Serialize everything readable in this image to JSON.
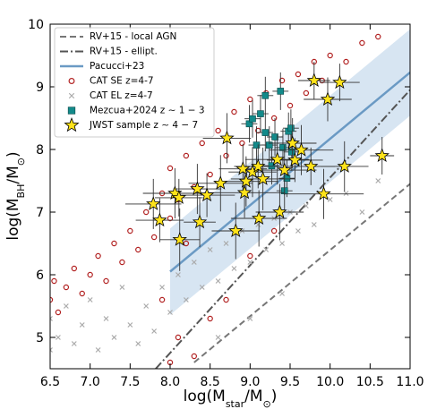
{
  "chart_data": {
    "type": "scatter",
    "xlabel": [
      "log(M",
      "star",
      "/M",
      "⊙",
      ")"
    ],
    "ylabel": [
      "log(M",
      "BH",
      "/M",
      "⊙",
      ")"
    ],
    "xlim": [
      6.5,
      11.0
    ],
    "ylim": [
      4.5,
      10
    ],
    "xticks": [
      6.5,
      {
        "value": 7,
        "label": "7.0"
      },
      7.5,
      {
        "value": 8,
        "label": "8.0"
      },
      8.5,
      {
        "value": 9,
        "label": "9.0"
      },
      9.5,
      {
        "value": 10,
        "label": "10.0"
      },
      10.5,
      {
        "value": 11,
        "label": "11.0"
      }
    ],
    "yticks": [
      5,
      6,
      7,
      8,
      9,
      10
    ],
    "band": {
      "color": "#c9dcee",
      "x": [
        8.0,
        11.0
      ],
      "lower": [
        5.36,
        8.54
      ],
      "upper": [
        6.74,
        9.92
      ]
    },
    "series": [
      {
        "name": "RV+15 - local AGN",
        "marker": "line",
        "linestyle": "dashed",
        "color": "#777777",
        "x": [
          8.3,
          11.0
        ],
        "values": [
          4.6,
          7.45
        ]
      },
      {
        "name": "RV+15 - ellipt.",
        "marker": "line",
        "linestyle": "dashdot",
        "color": "#555555",
        "x": [
          7.82,
          11.0
        ],
        "values": [
          4.5,
          8.95
        ]
      },
      {
        "name": "Pacucci+23",
        "marker": "line",
        "linestyle": "solid",
        "color": "#6b9ac4",
        "x": [
          8.0,
          11.0
        ],
        "values": [
          6.05,
          9.23
        ]
      },
      {
        "name": "CAT SE z=4-7",
        "marker": "o",
        "color": "#b22222",
        "x": [
          6.5,
          6.55,
          6.6,
          6.7,
          6.8,
          6.9,
          7.0,
          7.1,
          7.2,
          7.3,
          7.4,
          7.5,
          7.6,
          7.7,
          7.8,
          7.9,
          8.0,
          8.0,
          8.1,
          8.2,
          8.3,
          8.4,
          8.5,
          8.6,
          8.7,
          8.8,
          8.9,
          9.0,
          9.1,
          9.2,
          9.3,
          9.4,
          9.5,
          9.6,
          9.7,
          9.8,
          9.9,
          10.0,
          10.2,
          10.4,
          10.6,
          8.1,
          8.3,
          8.5,
          8.0,
          7.9,
          8.7,
          9.0,
          9.3,
          8.2
        ],
        "values": [
          5.6,
          5.9,
          5.4,
          5.8,
          6.1,
          5.7,
          6.0,
          6.3,
          5.9,
          6.5,
          6.2,
          6.7,
          6.4,
          7.0,
          6.6,
          7.3,
          6.9,
          7.7,
          7.2,
          7.9,
          7.4,
          8.1,
          7.6,
          8.3,
          7.9,
          8.6,
          8.1,
          8.8,
          8.3,
          8.9,
          8.5,
          9.1,
          8.7,
          9.2,
          8.9,
          9.4,
          9.1,
          9.5,
          9.4,
          9.7,
          9.8,
          5.0,
          4.7,
          5.3,
          4.6,
          5.6,
          5.6,
          6.3,
          6.7,
          6.5
        ]
      },
      {
        "name": "CAT EL z=4-7",
        "marker": "x",
        "color": "#aaaaaa",
        "x": [
          6.5,
          6.5,
          6.6,
          6.7,
          6.8,
          6.9,
          7.0,
          7.1,
          7.2,
          7.3,
          7.4,
          7.5,
          7.6,
          7.7,
          7.8,
          7.9,
          8.0,
          8.1,
          8.2,
          8.3,
          8.4,
          8.5,
          8.6,
          8.7,
          8.8,
          8.9,
          9.0,
          9.1,
          9.2,
          9.3,
          9.4,
          9.5,
          9.6,
          9.7,
          9.8,
          10.0,
          10.2,
          9.4,
          9.0,
          8.6,
          10.6,
          10.4
        ],
        "values": [
          4.8,
          5.3,
          5.0,
          5.5,
          4.9,
          5.2,
          5.6,
          4.8,
          5.3,
          5.0,
          5.8,
          5.2,
          4.9,
          5.5,
          5.1,
          5.8,
          5.4,
          6.0,
          5.6,
          6.2,
          5.8,
          6.4,
          5.9,
          6.5,
          6.1,
          6.7,
          6.2,
          6.8,
          6.4,
          6.9,
          6.5,
          7.0,
          6.7,
          7.1,
          6.8,
          7.2,
          7.3,
          5.7,
          5.3,
          5.0,
          7.5,
          7.0
        ]
      },
      {
        "name": "Mezcua+2024 z ∼ 1 − 3",
        "marker": "s",
        "color": "#138a8a",
        "x": [
          8.99,
          9.03,
          9.13,
          9.19,
          9.19,
          9.24,
          9.31,
          9.38,
          9.41,
          9.48,
          9.51,
          9.52,
          9.46,
          9.43,
          9.27,
          9.08
        ],
        "values": [
          8.41,
          8.49,
          8.57,
          8.86,
          8.27,
          8.07,
          8.2,
          8.93,
          8.03,
          8.29,
          8.34,
          7.96,
          7.54,
          7.34,
          7.74,
          8.07
        ],
        "xerr": [
          0.1,
          0.1,
          0.1,
          0.1,
          0.1,
          0.1,
          0.1,
          0.1,
          0.1,
          0.1,
          0.1,
          0.1,
          0.1,
          0.1,
          0.1,
          0.1
        ],
        "yerr": [
          0.3,
          0.3,
          0.3,
          0.3,
          0.3,
          0.3,
          0.3,
          0.3,
          0.3,
          0.3,
          0.3,
          0.3,
          0.3,
          0.3,
          0.3,
          0.3
        ]
      },
      {
        "name": "JWST sample z ∼ 4 − 7",
        "marker": "*",
        "color": "#ffe31a",
        "x": [
          7.79,
          7.87,
          8.06,
          8.11,
          8.12,
          8.34,
          8.46,
          8.37,
          8.63,
          8.71,
          8.82,
          8.91,
          8.95,
          8.93,
          9.03,
          9.1,
          9.11,
          9.16,
          9.34,
          9.37,
          9.43,
          9.53,
          9.56,
          9.64,
          9.76,
          9.8,
          9.92,
          9.97,
          10.12,
          10.18,
          10.65
        ],
        "values": [
          7.13,
          6.87,
          7.3,
          7.23,
          6.56,
          7.37,
          7.27,
          6.84,
          7.46,
          8.18,
          6.7,
          7.69,
          7.49,
          7.31,
          7.64,
          7.73,
          6.9,
          7.53,
          7.84,
          7.0,
          7.67,
          8.1,
          7.83,
          7.99,
          7.73,
          9.1,
          7.29,
          8.8,
          9.07,
          7.73,
          7.9
        ],
        "xerr": [
          0.35,
          0.3,
          0.4,
          0.3,
          0.25,
          0.3,
          0.35,
          0.2,
          0.4,
          0.3,
          0.3,
          0.3,
          0.4,
          0.5,
          0.3,
          0.3,
          0.35,
          0.4,
          0.4,
          0.3,
          0.4,
          0.3,
          0.35,
          0.4,
          0.3,
          0.2,
          0.5,
          0.3,
          0.25,
          0.3,
          0.15
        ],
        "yerr": [
          0.4,
          0.35,
          0.4,
          0.3,
          0.5,
          0.4,
          0.35,
          0.4,
          0.45,
          0.4,
          0.45,
          0.4,
          0.4,
          0.4,
          0.4,
          0.35,
          0.45,
          0.5,
          0.4,
          0.45,
          0.4,
          0.4,
          0.35,
          0.4,
          0.3,
          0.3,
          0.4,
          0.35,
          0.3,
          0.4,
          0.3
        ]
      }
    ]
  }
}
